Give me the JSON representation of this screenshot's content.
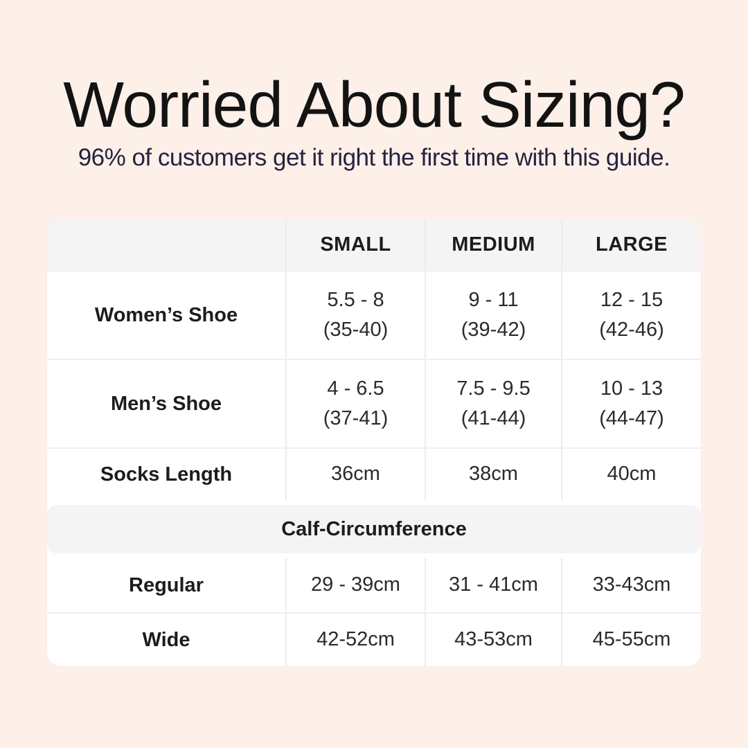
{
  "page": {
    "background_color": "#fdf0e9",
    "card_color": "#ffffff",
    "band_color": "#f4f4f5",
    "title_color": "#131313",
    "subtitle_color": "#26223f"
  },
  "header": {
    "title": "Worried About Sizing?",
    "subtitle": "96% of customers get it right the first time with this guide."
  },
  "table": {
    "size_headers": {
      "0": "SMALL",
      "1": "MEDIUM",
      "2": "LARGE"
    },
    "rows": {
      "0": {
        "label": "Women’s Shoe",
        "values": {
          "0": {
            "main": "5.5 - 8",
            "sub": "(35-40)"
          },
          "1": {
            "main": "9 - 11",
            "sub": "(39-42)"
          },
          "2": {
            "main": "12 - 15",
            "sub": "(42-46)"
          }
        }
      },
      "1": {
        "label": "Men’s Shoe",
        "values": {
          "0": {
            "main": "4 - 6.5",
            "sub": "(37-41)"
          },
          "1": {
            "main": "7.5 - 9.5",
            "sub": "(41-44)"
          },
          "2": {
            "main": "10 - 13",
            "sub": "(44-47)"
          }
        }
      },
      "2": {
        "label": "Socks Length",
        "values": {
          "0": {
            "main": "36cm"
          },
          "1": {
            "main": "38cm"
          },
          "2": {
            "main": "40cm"
          }
        }
      }
    },
    "section_header": "Calf-Circumference",
    "calf_rows": {
      "0": {
        "label": "Regular",
        "values": {
          "0": "29 - 39cm",
          "1": "31 - 41cm",
          "2": "33-43cm"
        }
      },
      "1": {
        "label": "Wide",
        "values": {
          "0": "42-52cm",
          "1": "43-53cm",
          "2": "45-55cm"
        }
      }
    }
  }
}
